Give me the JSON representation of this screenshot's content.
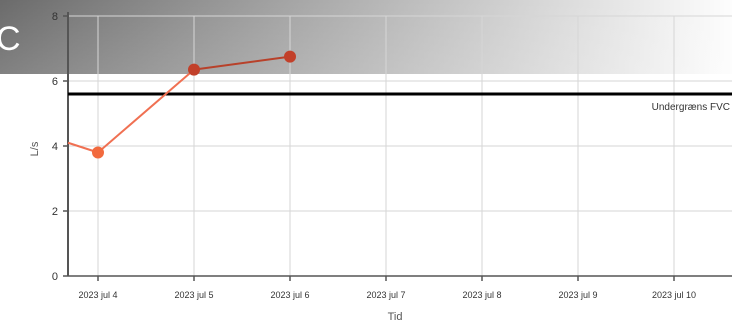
{
  "header": {
    "glyph": "C"
  },
  "colors": {
    "header_gradient_dark": "#6b6b6b",
    "header_gradient_light": "#fdfdfd",
    "series_line_early": "#f07052",
    "series_line_late": "#b8412a",
    "series_point_early": "#f26a3e",
    "series_point_late": "#c2402a",
    "reference_line": "#000000",
    "grid": "#d6d6d6",
    "axis": "#555555"
  },
  "chart_data": {
    "type": "line",
    "x": [
      "2023 jul 4",
      "2023 jul 5",
      "2023 jul 6"
    ],
    "x_ticks": [
      "2023 jul 4",
      "2023 jul 5",
      "2023 jul 6",
      "2023 jul 7",
      "2023 jul 8",
      "2023 jul 9",
      "2023 jul 10"
    ],
    "series": [
      {
        "values": [
          3.8,
          6.35,
          6.75
        ]
      }
    ],
    "lead_in_value": 4.1,
    "reference_line": {
      "value": 5.6,
      "label": "Undergræns FVC"
    },
    "xlabel": "Tid",
    "ylabel": "L/s",
    "ylim": [
      0,
      8
    ],
    "y_ticks": [
      0,
      2,
      4,
      6,
      8
    ],
    "grid": true
  }
}
